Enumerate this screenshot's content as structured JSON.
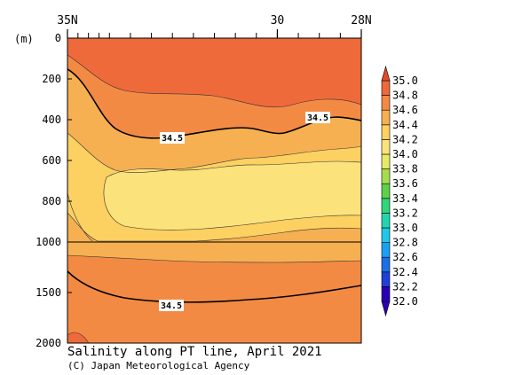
{
  "chart_data": {
    "type": "heatmap",
    "title": "Salinity along PT line, April 2021",
    "credit": "(C) Japan Meteorological Agency",
    "ylabel": "(m)",
    "x_ticks": [
      {
        "lat": 35,
        "label": "35N"
      },
      {
        "lat": 30,
        "label": "30"
      },
      {
        "lat": 28,
        "label": "28N"
      }
    ],
    "y_ticks_upper": [
      0,
      200,
      400,
      600,
      800,
      1000
    ],
    "y_ticks_lower": [
      1500,
      2000
    ],
    "depth_break": 1000,
    "x_range": [
      35,
      28
    ],
    "colorbar": {
      "levels": [
        "32.0",
        "32.2",
        "32.4",
        "32.6",
        "32.8",
        "33.0",
        "33.2",
        "33.4",
        "33.6",
        "33.8",
        "34.0",
        "34.2",
        "34.4",
        "34.6",
        "34.8",
        "35.0"
      ],
      "colors": [
        "#2a00b4",
        "#1f3fd6",
        "#1d6fe8",
        "#1aa0f2",
        "#1fc8e6",
        "#20d6b0",
        "#30d67a",
        "#5fd04a",
        "#a6dc4e",
        "#e6ea68",
        "#fce27a",
        "#fcd061",
        "#f6b052",
        "#f38a44",
        "#ee6a3a",
        "#e64a2a"
      ]
    },
    "contour_labels": [
      "34.5",
      "34.5",
      "34.5"
    ]
  }
}
